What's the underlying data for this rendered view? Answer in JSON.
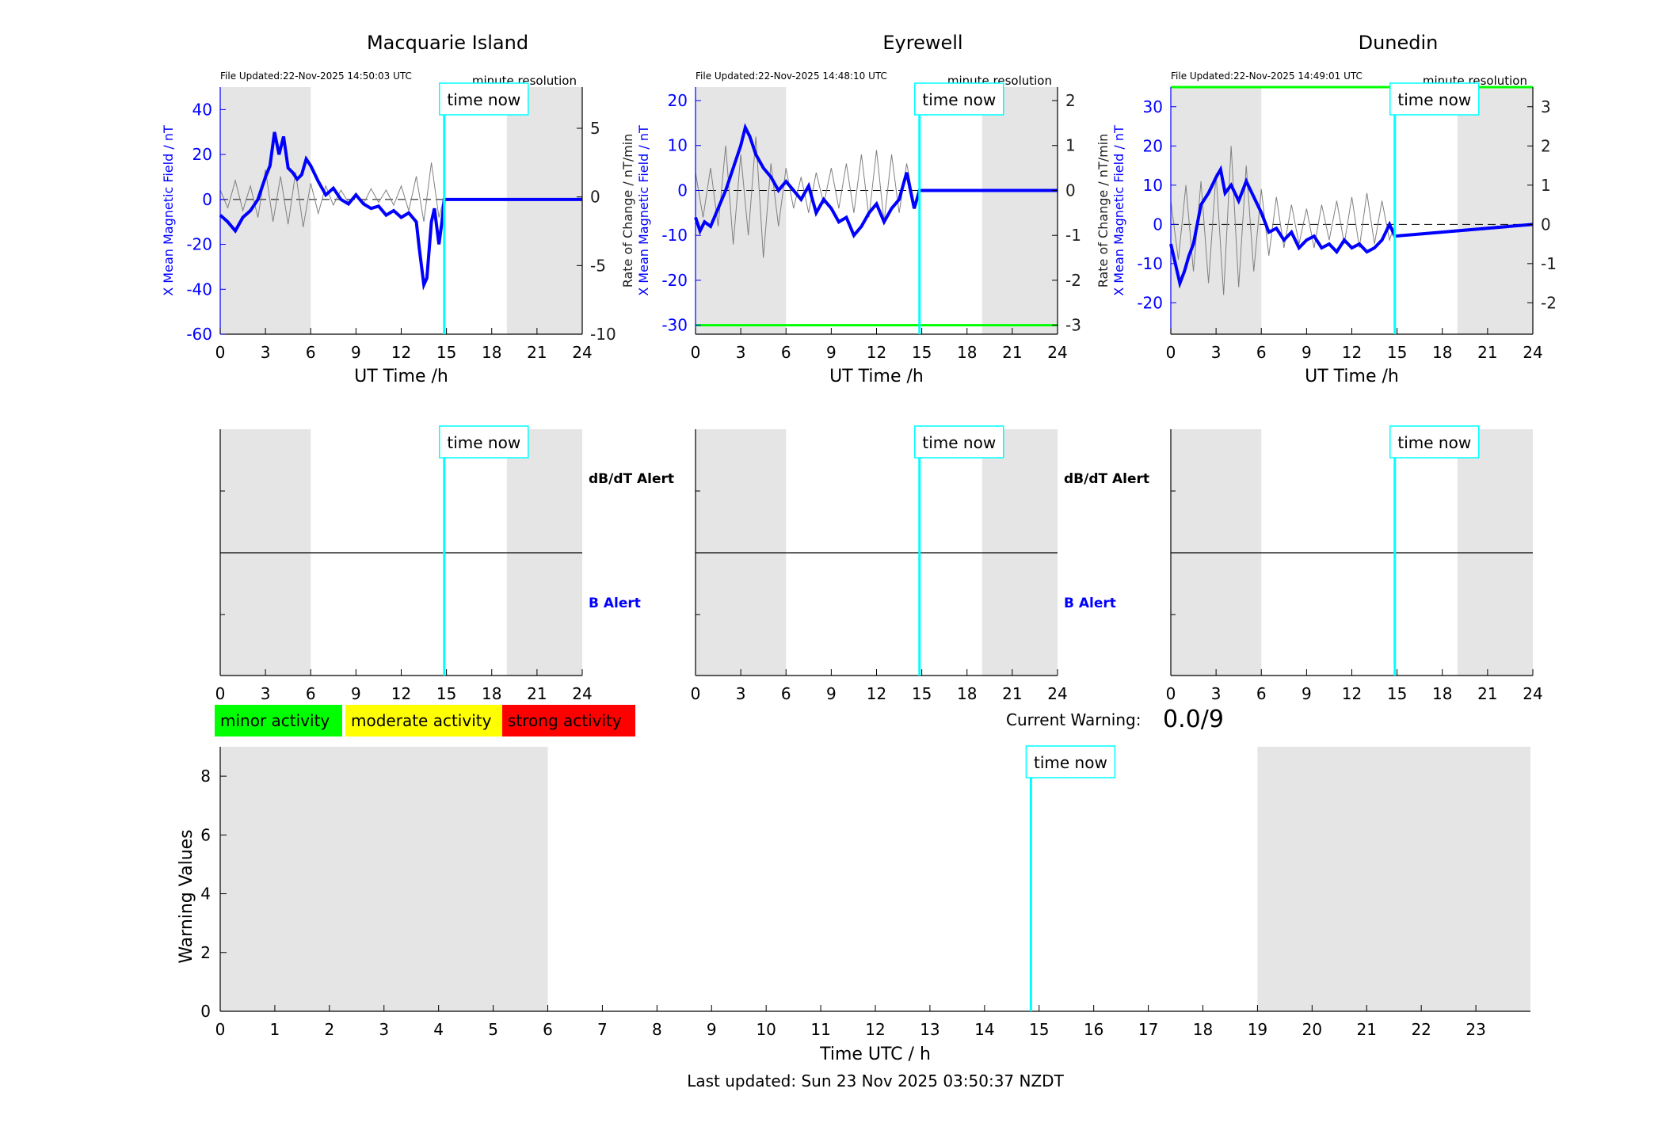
{
  "colors": {
    "shade": "#e5e5e5",
    "axis": "#000000",
    "series_b": "#0000ff",
    "series_dbdt": "#808080",
    "time_now": "#00ffff",
    "threshold_line": "#00ff00",
    "minor": "#00ff00",
    "moderate": "#ffff00",
    "strong": "#ff0000"
  },
  "common": {
    "time_now_label": "time now",
    "xlabel_top": "UT Time /h",
    "xticks_24": [
      "0",
      "3",
      "6",
      "9",
      "12",
      "15",
      "18",
      "21",
      "24"
    ],
    "ylabel_left": "X Mean Magnetic Field / nT",
    "ylabel_right": "Rate of Change / nT/min",
    "resolution": "minute resolution",
    "dbdt_alert": "dB/dT Alert",
    "b_alert": "B Alert"
  },
  "stations": [
    {
      "name": "Macquarie Island",
      "file_updated": "File Updated:22-Nov-2025 14:50:03 UTC",
      "yticks_left": [
        "40",
        "20",
        "0",
        "-20",
        "-40",
        "-60"
      ],
      "yticks_right": [
        "5",
        "0",
        "-5",
        "-10"
      ],
      "show_right_label": false,
      "show_alert_labels": true
    },
    {
      "name": "Eyrewell",
      "file_updated": "File Updated:22-Nov-2025 14:48:10 UTC",
      "yticks_left": [
        "20",
        "10",
        "0",
        "-10",
        "-20",
        "-30"
      ],
      "yticks_right": [
        "2",
        "1",
        "0",
        "-1",
        "-2",
        "-3"
      ],
      "show_right_label": true,
      "show_alert_labels": true
    },
    {
      "name": "Dunedin",
      "file_updated": "File Updated:22-Nov-2025 14:49:01 UTC",
      "yticks_left": [
        "30",
        "20",
        "10",
        "0",
        "-10",
        "-20"
      ],
      "yticks_right": [
        "3",
        "2",
        "1",
        "0",
        "-1",
        "-2"
      ],
      "show_right_label": true,
      "show_alert_labels": false
    }
  ],
  "legend": {
    "minor": "minor activity",
    "moderate": "moderate activity",
    "strong": "strong activity"
  },
  "warning": {
    "label": "Current Warning:",
    "value": "0.0/9"
  },
  "bottom": {
    "ylabel": "Warning Values",
    "xlabel": "Time UTC / h",
    "yticks": [
      "8",
      "6",
      "4",
      "2",
      "0"
    ],
    "xticks": [
      "0",
      "1",
      "2",
      "3",
      "4",
      "5",
      "6",
      "7",
      "8",
      "9",
      "10",
      "11",
      "12",
      "13",
      "14",
      "15",
      "16",
      "17",
      "18",
      "19",
      "20",
      "21",
      "22",
      "23"
    ]
  },
  "footer": {
    "last_updated": "Last updated: Sun 23 Nov 2025 03:50:37 NZDT"
  },
  "chart_data": [
    {
      "type": "line",
      "title": "Macquarie Island",
      "xlabel": "UT Time /h",
      "ylabel": "X Mean Magnetic Field / nT",
      "xlim": [
        0,
        24
      ],
      "ylim": [
        -60,
        50
      ],
      "y2lim": [
        -10,
        8
      ],
      "shaded_hours": [
        [
          0,
          6
        ],
        [
          19,
          24
        ]
      ],
      "time_now": 14.85,
      "series": [
        {
          "axis": "left",
          "x": [
            0,
            0.5,
            1,
            1.5,
            2,
            2.5,
            3,
            3.3,
            3.6,
            3.9,
            4.2,
            4.5,
            4.8,
            5.1,
            5.4,
            5.7,
            6,
            6.5,
            7,
            7.5,
            8,
            8.5,
            9,
            9.5,
            10,
            10.5,
            11,
            11.5,
            12,
            12.5,
            13,
            13.2,
            13.5,
            13.7,
            14,
            14.2,
            14.5,
            14.7,
            14.85,
            24
          ],
          "y": [
            -7,
            -10,
            -14,
            -8,
            -5,
            0,
            10,
            15,
            30,
            20,
            28,
            14,
            12,
            9,
            11,
            18,
            15,
            8,
            2,
            5,
            0,
            -2,
            2,
            -2,
            -4,
            -3,
            -7,
            -5,
            -8,
            -6,
            -10,
            -22,
            -38,
            -35,
            -10,
            -4,
            -20,
            -10,
            0,
            0
          ]
        },
        {
          "axis": "right",
          "x": [
            0,
            0.5,
            1,
            1.5,
            2,
            2.5,
            3,
            3.5,
            4,
            4.5,
            5,
            5.5,
            6,
            6.5,
            7,
            7.5,
            8,
            8.5,
            9,
            9.5,
            10,
            10.5,
            11,
            11.5,
            12,
            12.5,
            13,
            13.5,
            14,
            14.5,
            14.85
          ],
          "y": [
            0.5,
            -0.8,
            1.2,
            -1.0,
            0.8,
            -1.5,
            2.0,
            -1.8,
            1.5,
            -2.0,
            1.8,
            -2.2,
            1.0,
            -1.2,
            0.8,
            -0.6,
            0.5,
            -0.4,
            0.3,
            -0.5,
            0.6,
            -0.4,
            0.5,
            -0.6,
            0.8,
            -1.0,
            1.5,
            -1.8,
            2.5,
            -1.5,
            0
          ]
        }
      ]
    },
    {
      "type": "line",
      "title": "Eyrewell",
      "xlabel": "UT Time /h",
      "ylabel": "X Mean Magnetic Field / nT",
      "y2label": "Rate of Change / nT/min",
      "xlim": [
        0,
        24
      ],
      "ylim": [
        -32,
        23
      ],
      "y2lim": [
        -3.2,
        2.3
      ],
      "shaded_hours": [
        [
          0,
          6
        ],
        [
          19,
          24
        ]
      ],
      "threshold": -30,
      "time_now": 14.85,
      "series": [
        {
          "axis": "left",
          "x": [
            0,
            0.3,
            0.6,
            1,
            1.5,
            2,
            2.5,
            3,
            3.3,
            3.6,
            4,
            4.5,
            5,
            5.5,
            6,
            6.5,
            7,
            7.5,
            8,
            8.5,
            9,
            9.5,
            10,
            10.5,
            11,
            11.5,
            12,
            12.5,
            13,
            13.5,
            14,
            14.5,
            14.85,
            24
          ],
          "y": [
            -6,
            -9,
            -7,
            -8,
            -4,
            0,
            5,
            10,
            14,
            12,
            8,
            5,
            3,
            0,
            2,
            0,
            -2,
            1,
            -5,
            -2,
            -4,
            -7,
            -6,
            -10,
            -8,
            -5,
            -3,
            -7,
            -4,
            -2,
            4,
            -4,
            0,
            0
          ]
        },
        {
          "axis": "right",
          "x": [
            0,
            0.5,
            1,
            1.5,
            2,
            2.5,
            3,
            3.5,
            4,
            4.5,
            5,
            5.5,
            6,
            6.5,
            7,
            7.5,
            8,
            8.5,
            9,
            9.5,
            10,
            10.5,
            11,
            11.5,
            12,
            12.5,
            13,
            13.5,
            14,
            14.5,
            14.85
          ],
          "y": [
            0.4,
            -0.6,
            0.5,
            -0.8,
            1.0,
            -1.2,
            0.8,
            -1.0,
            1.2,
            -1.5,
            0.6,
            -0.8,
            0.5,
            -0.4,
            0.3,
            -0.5,
            0.4,
            -0.3,
            0.5,
            -0.4,
            0.6,
            -0.5,
            0.8,
            -0.6,
            0.9,
            -0.7,
            0.8,
            -0.5,
            0.6,
            -0.3,
            0
          ]
        }
      ]
    },
    {
      "type": "line",
      "title": "Dunedin",
      "xlabel": "UT Time /h",
      "ylabel": "X Mean Magnetic Field / nT",
      "y2label": "Rate of Change / nT/min",
      "xlim": [
        0,
        24
      ],
      "ylim": [
        -28,
        35
      ],
      "y2lim": [
        -2.8,
        3.5
      ],
      "shaded_hours": [
        [
          0,
          6
        ],
        [
          19,
          24
        ]
      ],
      "threshold": 35,
      "time_now": 14.85,
      "series": [
        {
          "axis": "left",
          "x": [
            0,
            0.3,
            0.6,
            0.9,
            1.2,
            1.5,
            2,
            2.5,
            3,
            3.3,
            3.6,
            4,
            4.5,
            5,
            5.5,
            6,
            6.5,
            7,
            7.5,
            8,
            8.5,
            9,
            9.5,
            10,
            10.5,
            11,
            11.5,
            12,
            12.5,
            13,
            13.5,
            14,
            14.5,
            14.85,
            24
          ],
          "y": [
            -5,
            -10,
            -15,
            -12,
            -8,
            -5,
            5,
            8,
            12,
            14,
            8,
            10,
            6,
            11,
            7,
            3,
            -2,
            -1,
            -4,
            -2,
            -6,
            -4,
            -3,
            -6,
            -5,
            -7,
            -4,
            -6,
            -5,
            -7,
            -6,
            -4,
            0,
            -3,
            0
          ]
        },
        {
          "axis": "right",
          "x": [
            0,
            0.5,
            1,
            1.5,
            2,
            2.5,
            3,
            3.5,
            4,
            4.5,
            5,
            5.5,
            6,
            6.5,
            7,
            7.5,
            8,
            8.5,
            9,
            9.5,
            10,
            10.5,
            11,
            11.5,
            12,
            12.5,
            13,
            13.5,
            14,
            14.5,
            14.85
          ],
          "y": [
            0.6,
            -0.9,
            1.0,
            -1.2,
            1.1,
            -1.5,
            1.3,
            -1.8,
            2.0,
            -1.6,
            1.5,
            -1.2,
            0.9,
            -0.8,
            0.7,
            -0.6,
            0.5,
            -0.5,
            0.4,
            -0.6,
            0.5,
            -0.4,
            0.6,
            -0.5,
            0.7,
            -0.6,
            0.8,
            -0.5,
            0.6,
            -0.4,
            0
          ]
        }
      ]
    },
    {
      "type": "line",
      "title": "",
      "xlabel": "Time UTC / h",
      "ylabel": "Warning Values",
      "xlim": [
        0,
        24
      ],
      "ylim": [
        0,
        9
      ],
      "shaded_hours": [
        [
          0,
          6
        ],
        [
          19,
          24
        ]
      ],
      "time_now": 14.85,
      "series": []
    }
  ]
}
